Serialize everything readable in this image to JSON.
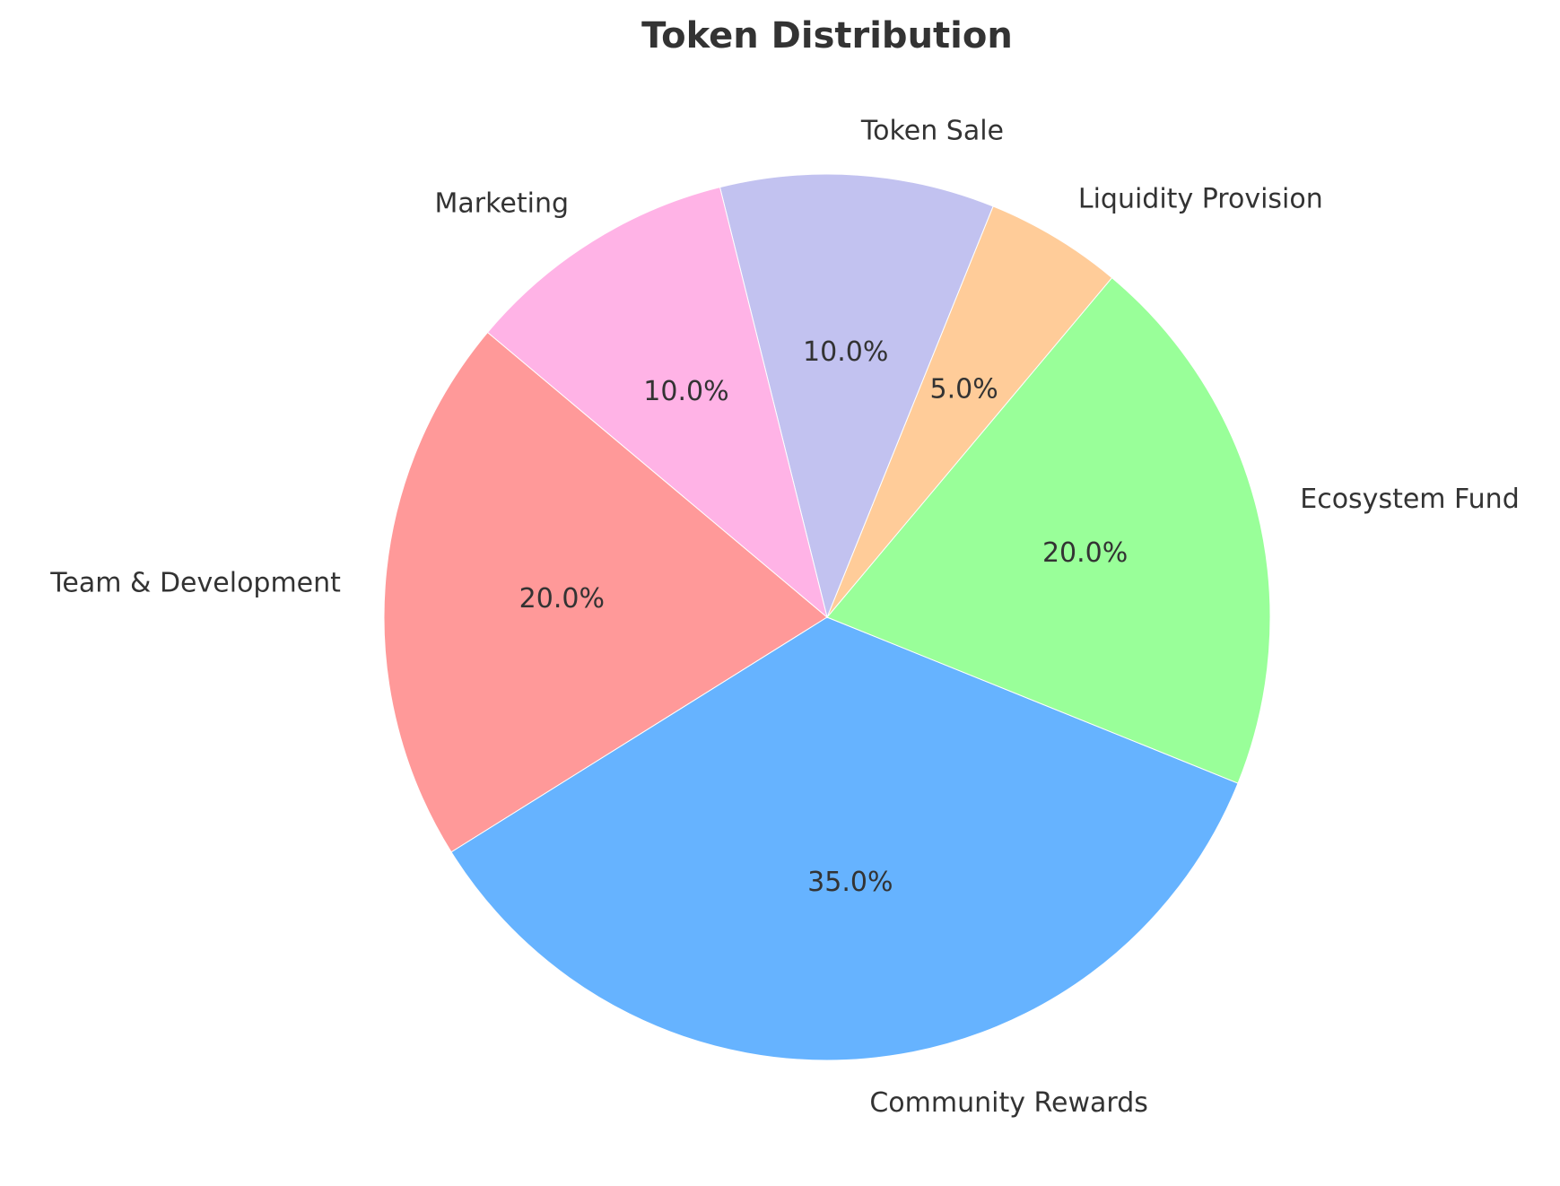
{
  "chart_data": {
    "type": "pie",
    "title": "Token Distribution",
    "slices": [
      {
        "label": "Team & Development",
        "value": 20.0,
        "pct_label": "20.0%",
        "color": "#ff9999"
      },
      {
        "label": "Community Rewards",
        "value": 35.0,
        "pct_label": "35.0%",
        "color": "#66b3ff"
      },
      {
        "label": "Ecosystem Fund",
        "value": 20.0,
        "pct_label": "20.0%",
        "color": "#99ff99"
      },
      {
        "label": "Liquidity Provision",
        "value": 5.0,
        "pct_label": "5.0%",
        "color": "#ffcc99"
      },
      {
        "label": "Token Sale",
        "value": 10.0,
        "pct_label": "10.0%",
        "color": "#c2c2f0"
      },
      {
        "label": "Marketing",
        "value": 10.0,
        "pct_label": "10.0%",
        "color": "#ffb3e6"
      }
    ],
    "start_angle_deg": 140,
    "direction": "counterclockwise",
    "legend": "none"
  }
}
